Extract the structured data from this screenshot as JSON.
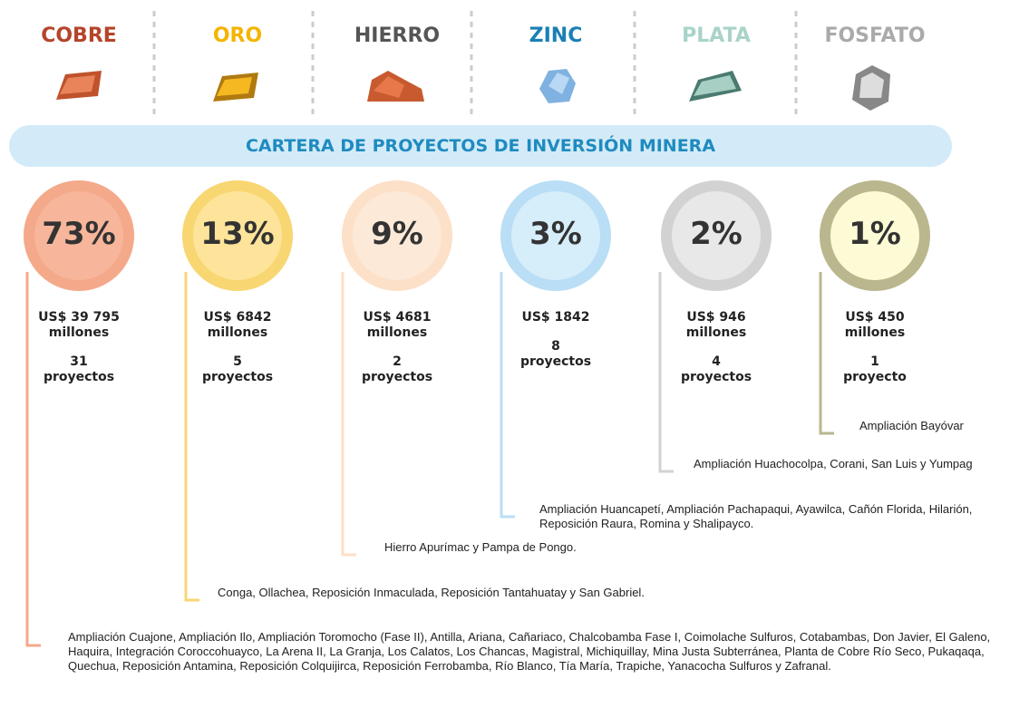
{
  "banner": "CARTERA DE PROYECTOS DE INVERSIÓN MINERA",
  "minerals": [
    {
      "name": "COBRE",
      "percent": "73%",
      "amount": "US$ 39 795",
      "unit": "millones",
      "count": "31",
      "count_label": "proyectos",
      "projects": "Ampliación Cuajone, Ampliación Ilo, Ampliación Toromocho (Fase II), Antilla, Ariana, Cañariaco, Chalcobamba Fase I, Coimolache Sulfuros, Cotabambas, Don Javier, El Galeno, Haquira, Integración Coroccohuayco, La Arena II, La Granja, Los Calatos, Los Chancas, Magistral, Michiquillay, Mina Justa Subterránea, Planta de Cobre Río Seco, Pukaqaqa, Quechua, Reposición Antamina, Reposición Colquijirca, Reposición Ferrobamba, Río Blanco, Tía María, Trapiche, Yanacocha Sulfuros y Zafranal."
    },
    {
      "name": "ORO",
      "percent": "13%",
      "amount": "US$ 6842",
      "unit": "millones",
      "count": "5",
      "count_label": "proyectos",
      "projects": "Conga, Ollachea, Reposición Inmaculada, Reposición Tantahuatay y San Gabriel."
    },
    {
      "name": "HIERRO",
      "percent": "9%",
      "amount": "US$ 4681",
      "unit": "millones",
      "count": "2",
      "count_label": "proyectos",
      "projects": "Hierro Apurímac y Pampa de Pongo."
    },
    {
      "name": "ZINC",
      "percent": "3%",
      "amount": "US$ 1842",
      "count": "8",
      "count_label": "proyectos",
      "projects": "Ampliación Huancapetí, Ampliación Pachapaqui, Ayawilca, Cañón Florida, Hilarión, Reposición Raura, Romina y Shalipayco."
    },
    {
      "name": "PLATA",
      "percent": "2%",
      "amount": "US$ 946",
      "unit": "millones",
      "count": "4",
      "count_label": "proyectos",
      "projects": "Ampliación Huachocolpa, Corani, San Luis y Yumpag"
    },
    {
      "name": "FOSFATO",
      "percent": "1%",
      "amount": "US$ 450",
      "unit": "millones",
      "count": "1",
      "count_label": "proyecto",
      "projects": "Ampliación Bayóvar"
    }
  ]
}
